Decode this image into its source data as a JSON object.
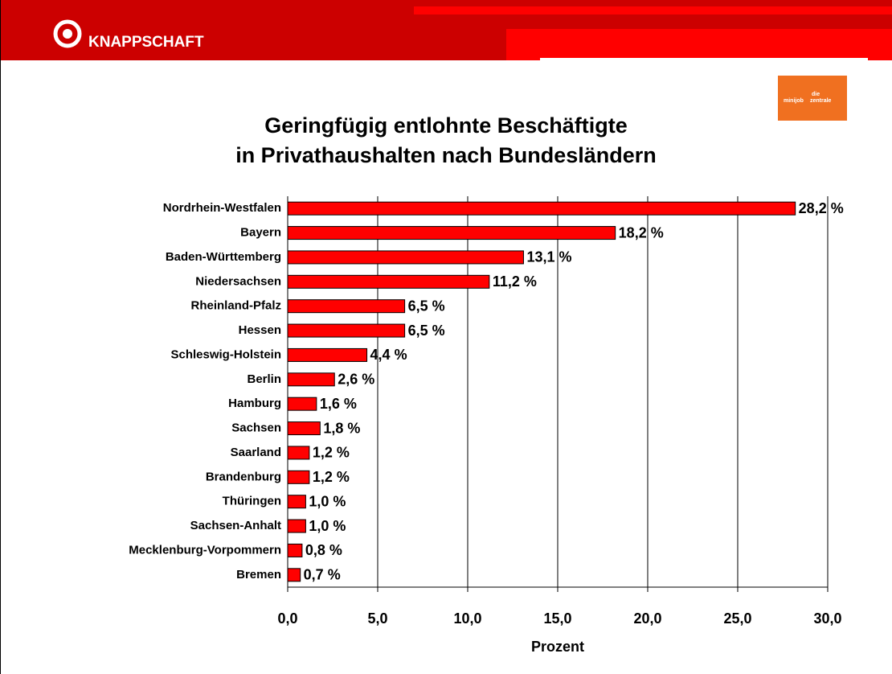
{
  "header": {
    "brand": "KNAPPSCHAFT",
    "logo": [
      "die",
      "minijob",
      "zentrale"
    ]
  },
  "chart_data": {
    "type": "bar",
    "orientation": "horizontal",
    "title": [
      "Geringfügig entlohnte Beschäftigte",
      "in Privathaushalten nach Bundesländern"
    ],
    "categories": [
      "Nordrhein-Westfalen",
      "Bayern",
      "Baden-Württemberg",
      "Niedersachsen",
      "Rheinland-Pfalz",
      "Hessen",
      "Schleswig-Holstein",
      "Berlin",
      "Hamburg",
      "Sachsen",
      "Saarland",
      "Brandenburg",
      "Thüringen",
      "Sachsen-Anhalt",
      "Mecklenburg-Vorpommern",
      "Bremen"
    ],
    "values": [
      28.2,
      18.2,
      13.1,
      11.2,
      6.5,
      6.5,
      4.4,
      2.6,
      1.6,
      1.8,
      1.2,
      1.2,
      1.0,
      1.0,
      0.8,
      0.7
    ],
    "value_labels": [
      "28,2 %",
      "18,2 %",
      "13,1 %",
      "11,2 %",
      "6,5 %",
      "6,5 %",
      "4,4 %",
      "2,6 %",
      "1,6 %",
      "1,8 %",
      "1,2 %",
      "1,2 %",
      "1,0 %",
      "1,0 %",
      "0,8 %",
      "0,7 %"
    ],
    "color": "#ff0000",
    "xlabel": "Prozent",
    "xlim": [
      0,
      30
    ],
    "xticks": [
      {
        "value": 0,
        "label": "0,0"
      },
      {
        "value": 5,
        "label": "5,0"
      },
      {
        "value": 10,
        "label": "10,0"
      },
      {
        "value": 15,
        "label": "15,0"
      },
      {
        "value": 20,
        "label": "20,0"
      },
      {
        "value": 25,
        "label": "25,0"
      },
      {
        "value": 30,
        "label": "30,0"
      }
    ],
    "grid": true
  }
}
